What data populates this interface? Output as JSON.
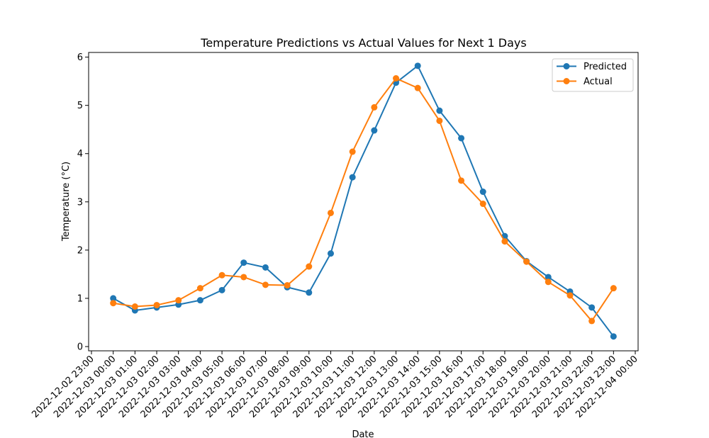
{
  "chart_data": {
    "type": "line",
    "title": "Temperature Predictions vs Actual Values for Next 1 Days",
    "xlabel": "Date",
    "ylabel": "Temperature (°C)",
    "xlim": [
      "2022-12-02 23:00",
      "2022-12-04 00:00"
    ],
    "ylim": [
      0,
      6
    ],
    "x_ticks": [
      "2022-12-02 23:00",
      "2022-12-03 00:00",
      "2022-12-03 01:00",
      "2022-12-03 02:00",
      "2022-12-03 03:00",
      "2022-12-03 04:00",
      "2022-12-03 05:00",
      "2022-12-03 06:00",
      "2022-12-03 07:00",
      "2022-12-03 08:00",
      "2022-12-03 09:00",
      "2022-12-03 10:00",
      "2022-12-03 11:00",
      "2022-12-03 12:00",
      "2022-12-03 13:00",
      "2022-12-03 14:00",
      "2022-12-03 15:00",
      "2022-12-03 16:00",
      "2022-12-03 17:00",
      "2022-12-03 18:00",
      "2022-12-03 19:00",
      "2022-12-03 20:00",
      "2022-12-03 21:00",
      "2022-12-03 22:00",
      "2022-12-03 23:00",
      "2022-12-04 00:00"
    ],
    "y_ticks": [
      "0",
      "1",
      "2",
      "3",
      "4",
      "5",
      "6"
    ],
    "x": [
      "2022-12-03 00:00",
      "2022-12-03 01:00",
      "2022-12-03 02:00",
      "2022-12-03 03:00",
      "2022-12-03 04:00",
      "2022-12-03 05:00",
      "2022-12-03 06:00",
      "2022-12-03 07:00",
      "2022-12-03 08:00",
      "2022-12-03 09:00",
      "2022-12-03 10:00",
      "2022-12-03 11:00",
      "2022-12-03 12:00",
      "2022-12-03 13:00",
      "2022-12-03 14:00",
      "2022-12-03 15:00",
      "2022-12-03 16:00",
      "2022-12-03 17:00",
      "2022-12-03 18:00",
      "2022-12-03 19:00",
      "2022-12-03 20:00",
      "2022-12-03 21:00",
      "2022-12-03 22:00",
      "2022-12-03 23:00"
    ],
    "series": [
      {
        "name": "Predicted",
        "color": "#1f77b4",
        "values": [
          1.0,
          0.75,
          0.81,
          0.87,
          0.96,
          1.17,
          1.74,
          1.64,
          1.23,
          1.12,
          1.93,
          3.51,
          4.48,
          5.47,
          5.82,
          4.89,
          4.32,
          3.21,
          2.29,
          1.77,
          1.44,
          1.14,
          0.81,
          0.21
        ]
      },
      {
        "name": "Actual",
        "color": "#ff7f0e",
        "values": [
          0.9,
          0.83,
          0.86,
          0.96,
          1.21,
          1.48,
          1.44,
          1.28,
          1.27,
          1.66,
          2.77,
          4.04,
          4.96,
          5.56,
          5.36,
          4.68,
          3.44,
          2.96,
          2.18,
          1.76,
          1.34,
          1.06,
          0.53,
          1.21
        ]
      }
    ],
    "grid": false,
    "legend": "upper-right"
  }
}
